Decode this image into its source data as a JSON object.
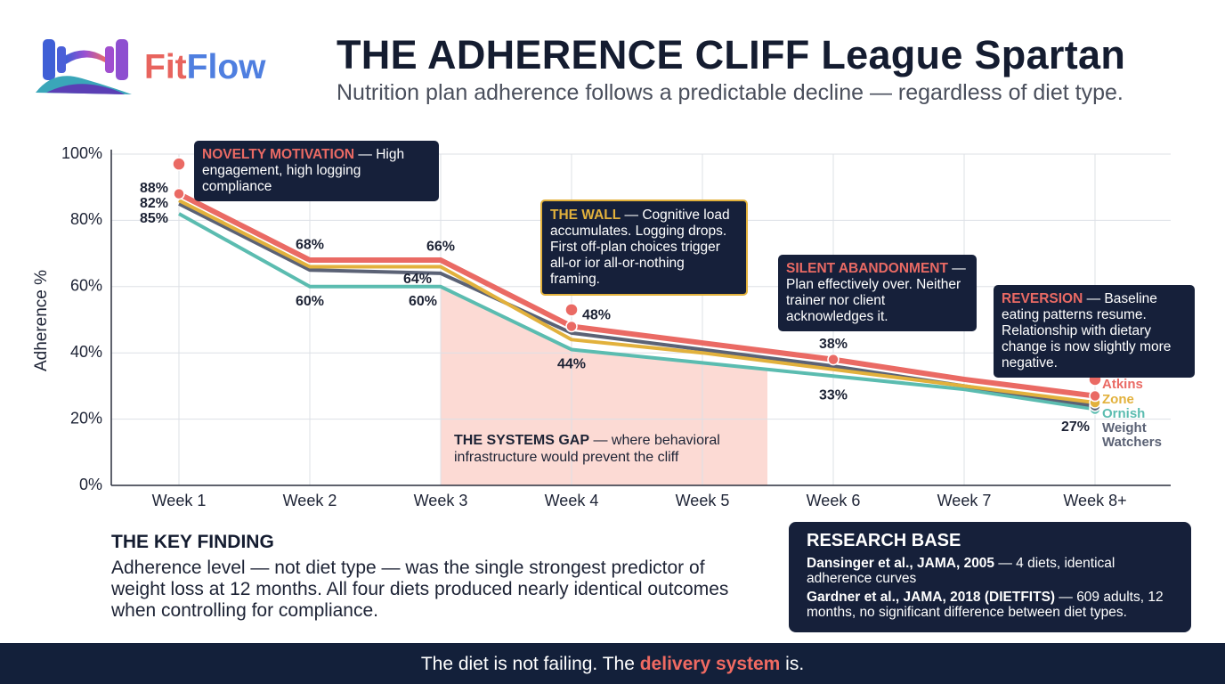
{
  "brand": {
    "first": "Fit",
    "second": "Flow"
  },
  "chart_data": {
    "type": "line",
    "title": "THE ADHERENCE CLIFF League Spartan",
    "subtitle": "Nutrition plan adherence follows a predictable decline — regardless of diet type.",
    "y_label": "Adherence %",
    "categories": [
      "Week 1",
      "Week 2",
      "Week 3",
      "Week 4",
      "Week 5",
      "Week 6",
      "Week 7",
      "Week 8+"
    ],
    "series": [
      {
        "name": "Atkins",
        "color": "#ea6a64",
        "values": [
          88,
          68,
          68,
          48,
          43,
          38,
          32,
          27
        ],
        "value_labels": [
          "88%",
          "68%",
          null,
          "48%",
          null,
          "38%",
          null,
          "27%"
        ]
      },
      {
        "name": "Zone",
        "color": "#e2b13c",
        "values": [
          86,
          66,
          66,
          44,
          40,
          35,
          30,
          25
        ],
        "value_labels": [
          null,
          null,
          "66%",
          "44%",
          null,
          null,
          null,
          null
        ]
      },
      {
        "name": "Ornish",
        "color": "#5bbcb0",
        "values": [
          82,
          60,
          60,
          41,
          37,
          33,
          29,
          23
        ],
        "value_labels": [
          "82%",
          "60%",
          "60%",
          null,
          null,
          "33%",
          null,
          null
        ]
      },
      {
        "name": "Weight Watchers",
        "color": "#5b6275",
        "values": [
          85,
          65,
          64,
          46,
          41,
          36,
          30,
          24
        ],
        "value_labels": [
          "85%",
          null,
          "64%",
          null,
          null,
          null,
          null,
          null
        ]
      }
    ],
    "callout_dots": [
      97,
      null,
      null,
      53,
      null,
      null,
      null,
      32
    ],
    "ylim": [
      0,
      100
    ],
    "yticks": [
      {
        "value": 0,
        "label": "0%"
      },
      {
        "value": 20,
        "label": "20%"
      },
      {
        "value": 40,
        "label": "40%"
      },
      {
        "value": 60,
        "label": "60%"
      },
      {
        "value": 80,
        "label": "80%"
      },
      {
        "value": 100,
        "label": "100%"
      }
    ],
    "grid": true,
    "annotations": [
      {
        "title": "NOVELTY MOTIVATION",
        "text": " — High engagement, high logging compliance",
        "color": "#ea6a64"
      },
      {
        "title": "THE WALL",
        "text": " — Cognitive load accumulates. Logging drops. First off-plan choices trigger all-or ior all-or-nothing framing.",
        "color": "#e2b13c"
      },
      {
        "title": "SILENT ABANDONMENT",
        "text": " — Plan effectively over. Neither trainer nor client acknowledges it.",
        "color": "#ea6a64"
      },
      {
        "title": "REVERSION",
        "text": " — Baseline eating patterns resume. Relationship with dietary change is now slightly more negative.",
        "color": "#ea6a64"
      }
    ],
    "gap_annotation": {
      "title": "THE SYSTEMS GAP",
      "text": " — where behavioral infrastructure would prevent the cliff"
    }
  },
  "key_finding": {
    "title": "THE KEY FINDING",
    "text": "Adherence level — not diet type — was the single strongest predictor of weight loss at 12 months. All four diets produced nearly identical outcomes when controlling for compliance."
  },
  "research_base": {
    "title": "RESEARCH BASE",
    "entries": [
      {
        "source": "Dansinger et al., JAMA, 2005",
        "text": " — 4 diets, identical adherence curves"
      },
      {
        "source": "Gardner et al., JAMA, 2018 (DIETFITS)",
        "text": " — 609 adults, 12 months, no significant difference between diet types."
      }
    ]
  },
  "footer": {
    "before": "The diet is not failing. The ",
    "highlight": "delivery system",
    "after": " is."
  }
}
